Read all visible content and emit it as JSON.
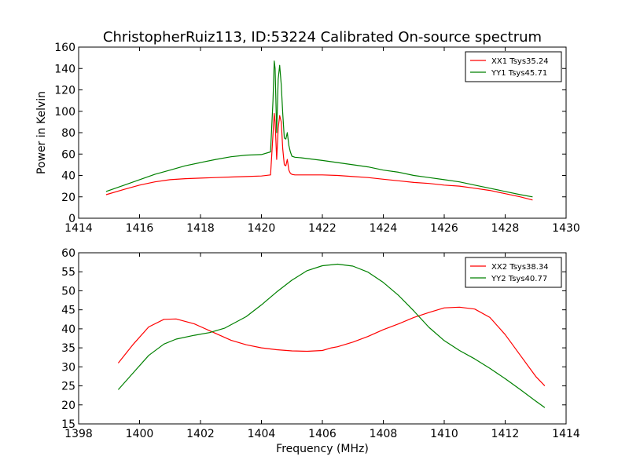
{
  "figure": {
    "title": "ChristopherRuiz113, ID:53224 Calibrated On-source spectrum"
  },
  "chart_data": [
    {
      "type": "line",
      "title": "ChristopherRuiz113, ID:53224 Calibrated On-source spectrum",
      "xlabel": "",
      "ylabel": "Power in Kelvin",
      "xlim": [
        1414,
        1430
      ],
      "ylim": [
        0,
        160
      ],
      "xticks": [
        1414,
        1416,
        1418,
        1420,
        1422,
        1424,
        1426,
        1428,
        1430
      ],
      "yticks": [
        0,
        20,
        40,
        60,
        80,
        100,
        120,
        140,
        160
      ],
      "grid": false,
      "legend_position": "top-right",
      "series": [
        {
          "name": "XX1 Tsys35.24",
          "color": "#ff0000",
          "x": [
            1414.9,
            1415.5,
            1416.0,
            1416.5,
            1417.0,
            1417.5,
            1418.0,
            1418.5,
            1419.0,
            1419.5,
            1420.0,
            1420.3,
            1420.42,
            1420.45,
            1420.5,
            1420.55,
            1420.6,
            1420.65,
            1420.7,
            1420.75,
            1420.8,
            1420.85,
            1420.9,
            1420.95,
            1421.0,
            1421.1,
            1421.3,
            1422.0,
            1422.5,
            1423.0,
            1423.5,
            1424.0,
            1424.5,
            1425.0,
            1425.5,
            1426.0,
            1426.5,
            1427.0,
            1427.5,
            1428.0,
            1428.5,
            1428.9
          ],
          "y": [
            22,
            27,
            31,
            34,
            36,
            37,
            37.5,
            38,
            38.5,
            39,
            39.5,
            40.5,
            98,
            90,
            55,
            84,
            96,
            90,
            65,
            50,
            49,
            55,
            45,
            42,
            41,
            40.5,
            40.5,
            40.5,
            40,
            39,
            38,
            36.5,
            35,
            33.5,
            32.5,
            31,
            30,
            28,
            26,
            23,
            20,
            17
          ]
        },
        {
          "name": "YY1 Tsys45.71",
          "color": "#008000",
          "x": [
            1414.9,
            1415.5,
            1416.0,
            1416.5,
            1417.0,
            1417.5,
            1418.0,
            1418.5,
            1419.0,
            1419.5,
            1420.0,
            1420.3,
            1420.38,
            1420.42,
            1420.45,
            1420.5,
            1420.55,
            1420.6,
            1420.65,
            1420.7,
            1420.75,
            1420.8,
            1420.85,
            1420.9,
            1420.95,
            1421.0,
            1421.1,
            1421.3,
            1422.0,
            1422.5,
            1423.0,
            1423.5,
            1424.0,
            1424.5,
            1425.0,
            1425.5,
            1426.0,
            1426.5,
            1427.0,
            1427.5,
            1428.0,
            1428.5,
            1428.9
          ],
          "y": [
            25,
            31,
            36,
            41,
            45,
            49,
            52,
            55,
            57.5,
            59,
            59.5,
            62,
            110,
            147,
            140,
            80,
            130,
            143,
            125,
            98,
            75,
            74,
            80,
            68,
            62,
            58,
            57,
            56.5,
            54,
            52,
            50,
            48,
            45,
            43,
            40,
            38,
            36,
            34,
            31,
            28,
            25,
            22,
            20
          ]
        }
      ]
    },
    {
      "type": "line",
      "title": "",
      "xlabel": "Frequency (MHz)",
      "ylabel": "",
      "xlim": [
        1398,
        1414
      ],
      "ylim": [
        15,
        60
      ],
      "xticks": [
        1398,
        1400,
        1402,
        1404,
        1406,
        1408,
        1410,
        1412,
        1414
      ],
      "yticks": [
        15,
        20,
        25,
        30,
        35,
        40,
        45,
        50,
        55,
        60
      ],
      "grid": false,
      "legend_position": "top-right",
      "series": [
        {
          "name": "XX2 Tsys38.34",
          "color": "#ff0000",
          "x": [
            1399.3,
            1399.8,
            1400.3,
            1400.8,
            1401.2,
            1401.8,
            1402.3,
            1403.0,
            1403.5,
            1404.0,
            1404.5,
            1405.0,
            1405.5,
            1406.0,
            1406.3,
            1406.5,
            1407.0,
            1407.5,
            1408.0,
            1408.5,
            1409.0,
            1409.5,
            1410.0,
            1410.5,
            1411.0,
            1411.5,
            1412.0,
            1412.5,
            1413.0,
            1413.3
          ],
          "y": [
            31,
            36,
            40.5,
            42.5,
            42.6,
            41.3,
            39.5,
            37,
            35.8,
            35,
            34.5,
            34.2,
            34.1,
            34.3,
            35,
            35.3,
            36.5,
            38,
            39.8,
            41.3,
            43,
            44.3,
            45.5,
            45.7,
            45.2,
            43,
            38.5,
            33,
            27.5,
            25
          ]
        },
        {
          "name": "YY2 Tsys40.77",
          "color": "#008000",
          "x": [
            1399.3,
            1399.8,
            1400.3,
            1400.8,
            1401.2,
            1401.8,
            1402.3,
            1402.8,
            1403.5,
            1404.0,
            1404.5,
            1405.0,
            1405.5,
            1406.0,
            1406.5,
            1407.0,
            1407.5,
            1408.0,
            1408.5,
            1409.0,
            1409.5,
            1410.0,
            1410.5,
            1411.0,
            1411.5,
            1412.0,
            1412.5,
            1413.0,
            1413.3
          ],
          "y": [
            24,
            28.5,
            33,
            36,
            37.3,
            38.3,
            39,
            40.2,
            43.2,
            46.3,
            49.7,
            52.8,
            55.3,
            56.6,
            57,
            56.5,
            54.9,
            52.2,
            48.8,
            44.7,
            40.4,
            36.9,
            34.3,
            32.1,
            29.6,
            26.9,
            24,
            21,
            19.3
          ]
        }
      ]
    }
  ]
}
